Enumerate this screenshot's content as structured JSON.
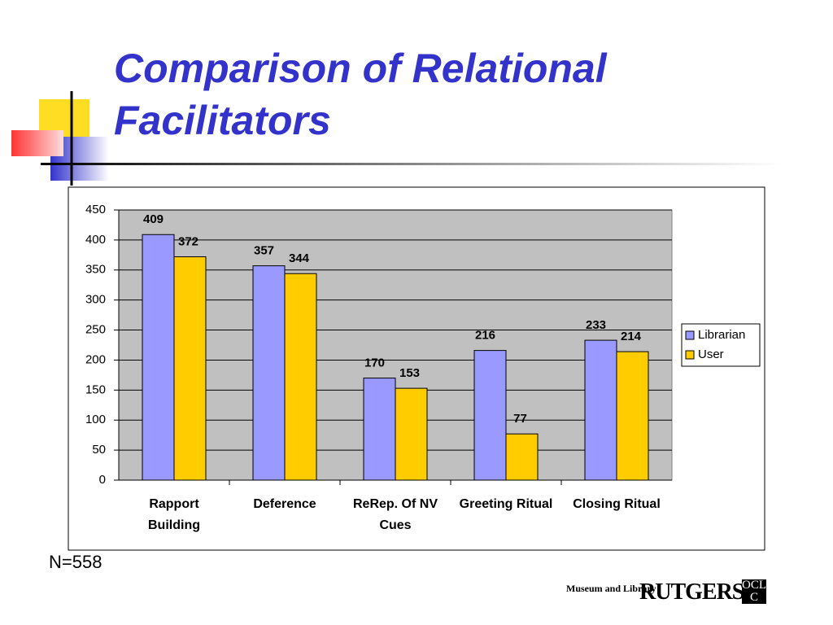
{
  "title": "Comparison of Relational Facilitators",
  "note": "N=558",
  "logos": [
    "Museum and Library",
    "RUTGERS",
    "OCLC"
  ],
  "chart_data": {
    "type": "bar",
    "categories": [
      "Rapport Building",
      "Deference",
      "ReRep. Of NV Cues",
      "Greeting Ritual",
      "Closing Ritual"
    ],
    "series": [
      {
        "name": "Librarian",
        "color": "#9999ff",
        "values": [
          409,
          357,
          170,
          216,
          233
        ]
      },
      {
        "name": "User",
        "color": "#ffcc00",
        "values": [
          372,
          344,
          153,
          77,
          214
        ]
      }
    ],
    "ylim": [
      0,
      450
    ],
    "yticks": [
      0,
      50,
      100,
      150,
      200,
      250,
      300,
      350,
      400,
      450
    ],
    "grid": true,
    "legend": "right"
  }
}
